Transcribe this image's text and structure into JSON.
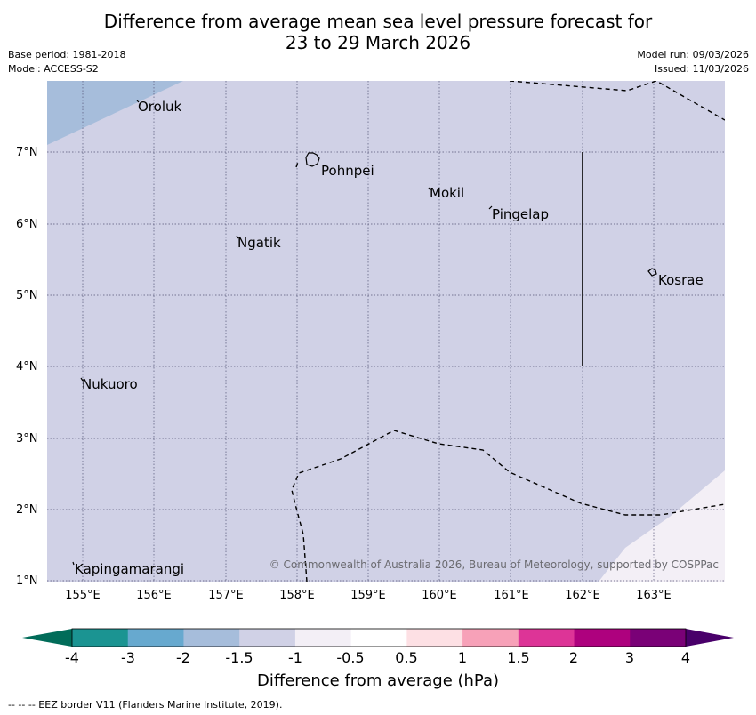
{
  "title": {
    "line1": "Difference from average mean sea level pressure forecast for",
    "line2": "23 to 29 March 2026"
  },
  "meta": {
    "base_period": "Base period: 1981-2018",
    "model": "Model: ACCESS-S2",
    "model_run": "Model run: 09/03/2026",
    "issued": "Issued: 11/03/2026"
  },
  "map": {
    "extent": {
      "lon_min": 154.5,
      "lon_max": 164.0,
      "lat_min": 1.0,
      "lat_max": 8.0
    },
    "x_ticks": [
      "155°E",
      "156°E",
      "157°E",
      "158°E",
      "159°E",
      "160°E",
      "161°E",
      "162°E",
      "163°E"
    ],
    "y_ticks": [
      "7°N",
      "6°N",
      "5°N",
      "4°N",
      "3°N",
      "2°N",
      "1°N"
    ],
    "places": [
      {
        "name": "Oroluk",
        "lon": 155.75,
        "lat": 7.6
      },
      {
        "name": "Pohnpei",
        "lon": 158.32,
        "lat": 6.82
      },
      {
        "name": "Mokil",
        "lon": 159.85,
        "lat": 6.46
      },
      {
        "name": "Pingelap",
        "lon": 160.75,
        "lat": 6.2
      },
      {
        "name": "Ngatik",
        "lon": 157.2,
        "lat": 5.78
      },
      {
        "name": "Kosrae",
        "lon": 163.0,
        "lat": 5.3
      },
      {
        "name": "Nukuoro",
        "lon": 154.95,
        "lat": 3.83
      },
      {
        "name": "Kapingamarangi",
        "lon": 154.8,
        "lat": 1.3
      }
    ],
    "copyright": "© Commonwealth of Australia 2026, Bureau of Meteorology, supported by COSPPac",
    "colors": {
      "range_-1.5_-1": "#d0d1e6",
      "range_-2_-1.5": "#a6bddb",
      "range_-1_-0.5": "#f3eff6"
    }
  },
  "colorbar": {
    "title": "Difference from average (hPa)",
    "tick_labels": [
      "-4",
      "-3",
      "-2",
      "-1.5",
      "-1",
      "-0.5",
      "0.5",
      "1",
      "1.5",
      "2",
      "3",
      "4"
    ],
    "colors": [
      "#1b9492",
      "#67a9cf",
      "#a6bddb",
      "#d0d1e6",
      "#f3eff6",
      "#ffffff",
      "#fde0e4",
      "#f7a1b8",
      "#dd3497",
      "#ae017e",
      "#7a0177"
    ],
    "under_color": "#016c59",
    "over_color": "#49006a"
  },
  "footnote": "-- -- -- EEZ border V11 (Flanders Marine Institute, 2019)."
}
